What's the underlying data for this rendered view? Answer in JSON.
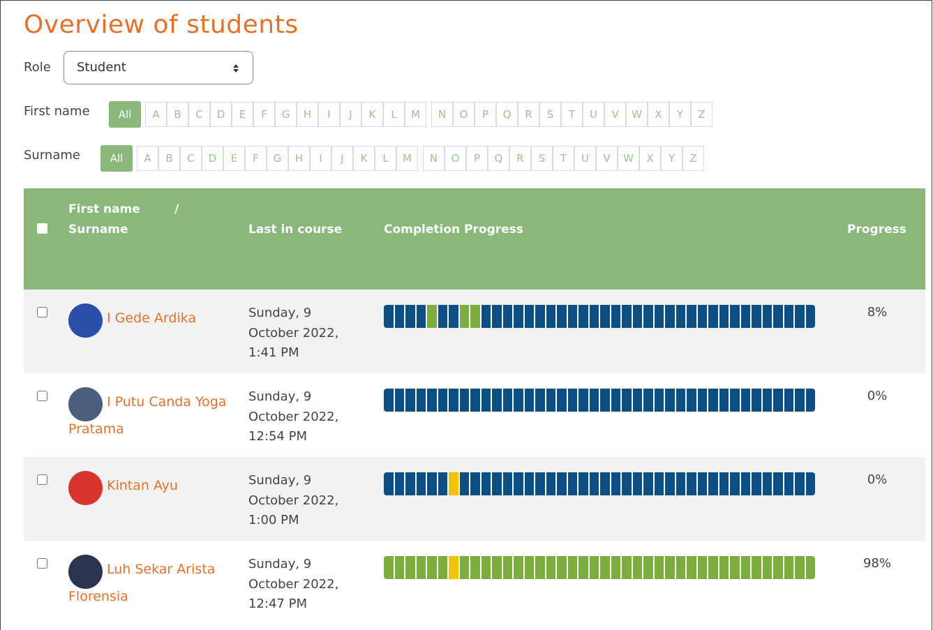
{
  "page": {
    "title": "Overview of students",
    "role": {
      "label": "Role",
      "selected": "Student"
    },
    "filters": {
      "first_name_label": "First name",
      "surname_label": "Surname",
      "all": "All",
      "letters": [
        "A",
        "B",
        "C",
        "D",
        "E",
        "F",
        "G",
        "H",
        "I",
        "J",
        "K",
        "L",
        "M",
        "N",
        "O",
        "P",
        "Q",
        "R",
        "S",
        "T",
        "U",
        "V",
        "W",
        "X",
        "Y",
        "Z"
      ]
    },
    "table": {
      "headers": {
        "first_name": "First name",
        "separator": "/",
        "surname": "Surname",
        "last_in_course": "Last in course",
        "completion": "Completion Progress",
        "progress": "Progress"
      },
      "rows": [
        {
          "name": "I Gede Ardika",
          "last": [
            "Sunday, 9",
            "October 2022,",
            "1:41 PM"
          ],
          "progress": "8%",
          "avatar": "#2a4fa8",
          "segments": [
            "#0b4f84",
            "#0b4f84",
            "#0b4f84",
            "#0b4f84",
            "#7dac3f",
            "#0b4f84",
            "#0b4f84",
            "#7dac3f",
            "#7dac3f",
            "#0b4f84",
            "#0b4f84",
            "#0b4f84",
            "#0b4f84",
            "#0b4f84",
            "#0b4f84",
            "#0b4f84",
            "#0b4f84",
            "#0b4f84",
            "#0b4f84",
            "#0b4f84",
            "#0b4f84",
            "#0b4f84",
            "#0b4f84",
            "#0b4f84",
            "#0b4f84",
            "#0b4f84",
            "#0b4f84",
            "#0b4f84",
            "#0b4f84",
            "#0b4f84",
            "#0b4f84",
            "#0b4f84",
            "#0b4f84",
            "#0b4f84",
            "#0b4f84",
            "#0b4f84",
            "#0b4f84",
            "#0b4f84",
            "#0b4f84",
            "#0b4f84"
          ]
        },
        {
          "name": "I Putu Canda Yoga Pratama",
          "last": [
            "Sunday, 9",
            "October 2022,",
            "12:54 PM"
          ],
          "progress": "0%",
          "avatar": "#4a5f80",
          "segments": [
            "#0b4f84",
            "#0b4f84",
            "#0b4f84",
            "#0b4f84",
            "#0b4f84",
            "#0b4f84",
            "#0b4f84",
            "#0b4f84",
            "#0b4f84",
            "#0b4f84",
            "#0b4f84",
            "#0b4f84",
            "#0b4f84",
            "#0b4f84",
            "#0b4f84",
            "#0b4f84",
            "#0b4f84",
            "#0b4f84",
            "#0b4f84",
            "#0b4f84",
            "#0b4f84",
            "#0b4f84",
            "#0b4f84",
            "#0b4f84",
            "#0b4f84",
            "#0b4f84",
            "#0b4f84",
            "#0b4f84",
            "#0b4f84",
            "#0b4f84",
            "#0b4f84",
            "#0b4f84",
            "#0b4f84",
            "#0b4f84",
            "#0b4f84",
            "#0b4f84",
            "#0b4f84",
            "#0b4f84",
            "#0b4f84",
            "#0b4f84"
          ]
        },
        {
          "name": "Kintan Ayu",
          "last": [
            "Sunday, 9",
            "October 2022,",
            "1:00 PM"
          ],
          "progress": "0%",
          "avatar": "#d9352c",
          "segments": [
            "#0b4f84",
            "#0b4f84",
            "#0b4f84",
            "#0b4f84",
            "#0b4f84",
            "#0b4f84",
            "#f4c300",
            "#0b4f84",
            "#0b4f84",
            "#0b4f84",
            "#0b4f84",
            "#0b4f84",
            "#0b4f84",
            "#0b4f84",
            "#0b4f84",
            "#0b4f84",
            "#0b4f84",
            "#0b4f84",
            "#0b4f84",
            "#0b4f84",
            "#0b4f84",
            "#0b4f84",
            "#0b4f84",
            "#0b4f84",
            "#0b4f84",
            "#0b4f84",
            "#0b4f84",
            "#0b4f84",
            "#0b4f84",
            "#0b4f84",
            "#0b4f84",
            "#0b4f84",
            "#0b4f84",
            "#0b4f84",
            "#0b4f84",
            "#0b4f84",
            "#0b4f84",
            "#0b4f84",
            "#0b4f84",
            "#0b4f84"
          ]
        },
        {
          "name": "Luh Sekar Arista Florensia",
          "last": [
            "Sunday, 9",
            "October 2022,",
            "12:47 PM"
          ],
          "progress": "98%",
          "avatar": "#2b3550",
          "segments": [
            "#7dac3f",
            "#7dac3f",
            "#7dac3f",
            "#7dac3f",
            "#7dac3f",
            "#7dac3f",
            "#f4c300",
            "#7dac3f",
            "#7dac3f",
            "#7dac3f",
            "#7dac3f",
            "#7dac3f",
            "#7dac3f",
            "#7dac3f",
            "#7dac3f",
            "#7dac3f",
            "#7dac3f",
            "#7dac3f",
            "#7dac3f",
            "#7dac3f",
            "#7dac3f",
            "#7dac3f",
            "#7dac3f",
            "#7dac3f",
            "#7dac3f",
            "#7dac3f",
            "#7dac3f",
            "#7dac3f",
            "#7dac3f",
            "#7dac3f",
            "#7dac3f",
            "#7dac3f",
            "#7dac3f",
            "#7dac3f",
            "#7dac3f",
            "#7dac3f",
            "#7dac3f",
            "#7dac3f",
            "#7dac3f",
            "#7dac3f"
          ]
        }
      ]
    }
  }
}
